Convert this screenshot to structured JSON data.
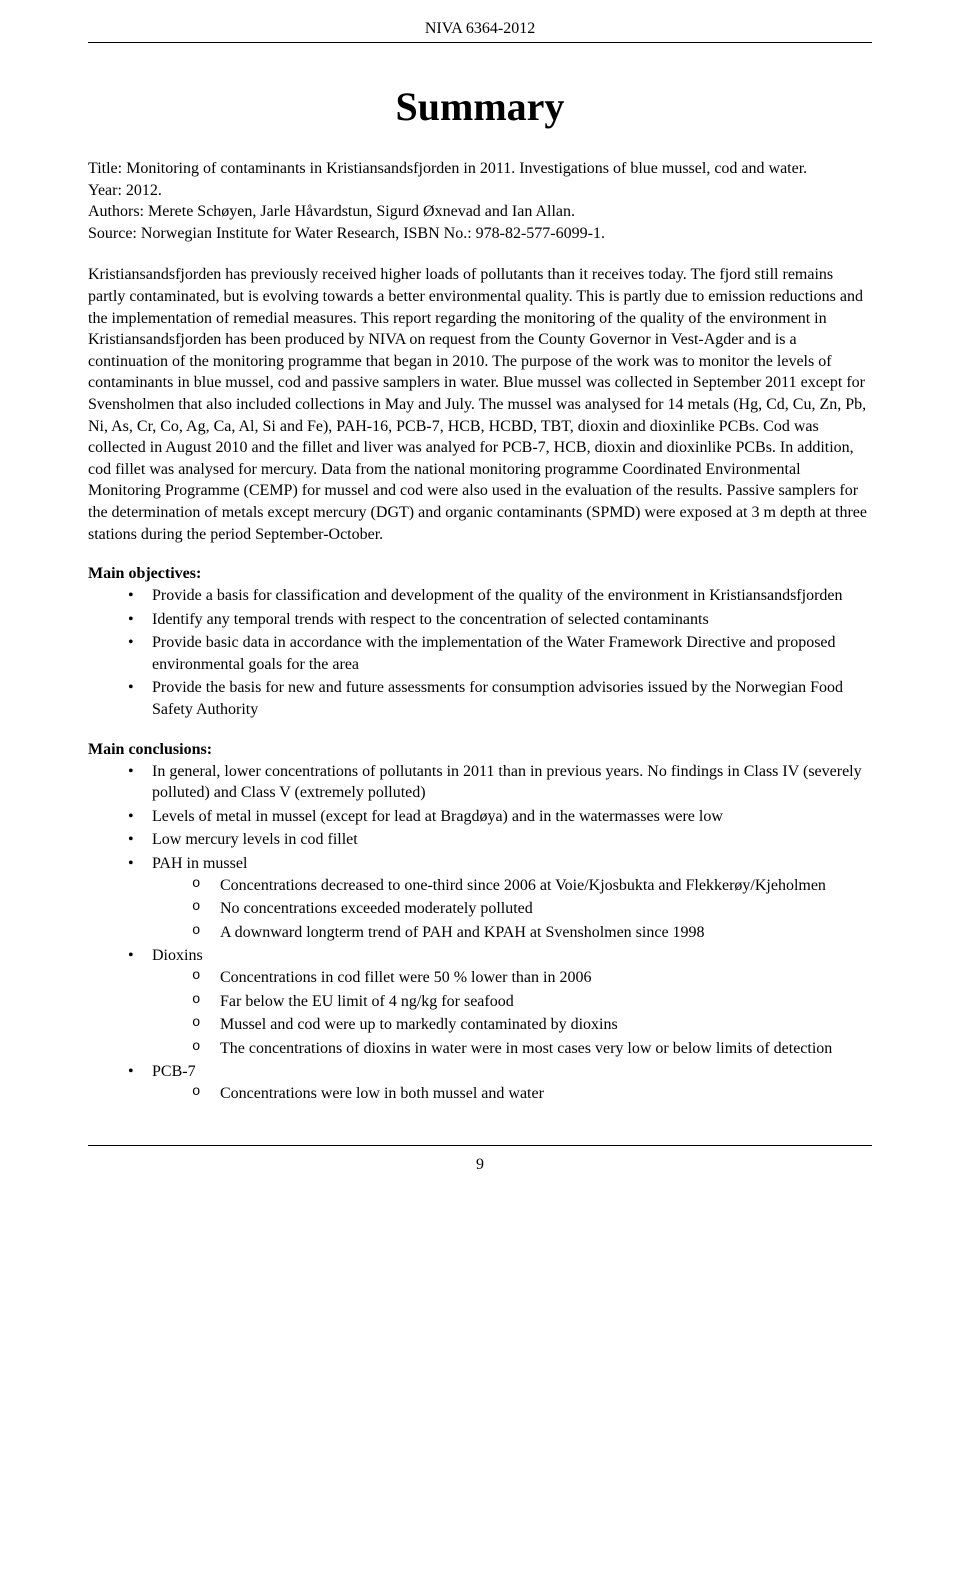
{
  "header": {
    "doc_id": "NIVA 6364-2012"
  },
  "title": "Summary",
  "meta": {
    "title_line": "Title: Monitoring of contaminants in Kristiansandsfjorden in 2011. Investigations of blue mussel, cod and water.",
    "year_line": "Year: 2012.",
    "authors_line": "Authors: Merete Schøyen, Jarle Håvardstun, Sigurd Øxnevad and Ian Allan.",
    "source_line": "Source: Norwegian Institute for Water Research, ISBN No.: 978-82-577-6099-1."
  },
  "body": {
    "para1": "Kristiansandsfjorden has previously received higher loads of pollutants than it receives today. The fjord still remains partly contaminated, but is evolving towards a better environmental quality. This is partly due to emission reductions and the implementation of remedial measures. This report regarding the monitoring of the quality of the environment in Kristiansandsfjorden has been produced by NIVA on request from the County Governor in Vest-Agder and is a continuation of the monitoring programme that began in 2010. The purpose of the work was to monitor the levels of contaminants in blue mussel, cod and passive samplers in water. Blue mussel was collected in September 2011 except for Svensholmen that also included collections in May and July. The mussel was analysed for 14 metals (Hg, Cd, Cu, Zn, Pb, Ni, As, Cr, Co, Ag, Ca, Al, Si and Fe), PAH-16, PCB-7, HCB, HCBD, TBT, dioxin and dioxinlike PCBs. Cod was collected in August 2010 and the fillet and liver was analyed for PCB-7, HCB, dioxin and dioxinlike PCBs. In addition, cod fillet was analysed for mercury. Data from the national monitoring programme Coordinated Environmental Monitoring Programme (CEMP) for mussel and cod were also used in the evaluation of the results. Passive samplers for the determination of metals except mercury (DGT) and organic contaminants (SPMD) were exposed at 3 m depth at three stations during the period September-October."
  },
  "objectives": {
    "heading": "Main objectives:",
    "items": [
      "Provide a basis for classification and development of the quality of the environment in Kristiansandsfjorden",
      "Identify any temporal trends with respect to the concentration of selected contaminants",
      "Provide basic data in accordance with the implementation of the Water Framework Directive and proposed environmental goals for the area",
      "Provide the basis for new and future assessments for consumption advisories issued by the Norwegian Food Safety Authority"
    ]
  },
  "conclusions": {
    "heading": "Main conclusions:",
    "items": [
      {
        "text": "In general, lower concentrations of pollutants in 2011 than in previous years. No findings in Class IV (severely polluted) and Class V (extremely polluted)"
      },
      {
        "text": "Levels of metal in mussel (except for lead at Bragdøya) and in the watermasses were low"
      },
      {
        "text": "Low mercury levels in cod fillet"
      },
      {
        "text": "PAH in mussel",
        "sub": [
          "Concentrations decreased to one-third since 2006 at Voie/Kjosbukta and Flekkerøy/Kjeholmen",
          "No concentrations exceeded moderately polluted",
          "A downward longterm trend of PAH and KPAH at Svensholmen since 1998"
        ]
      },
      {
        "text": "Dioxins",
        "sub": [
          "Concentrations in cod fillet were 50 % lower than in 2006",
          "Far below the EU limit of 4 ng/kg for seafood",
          "Mussel and cod were up to markedly contaminated by dioxins",
          "The concentrations of dioxins in water were in most cases very low or below limits of detection"
        ]
      },
      {
        "text": "PCB-7",
        "sub": [
          "Concentrations were low in both mussel and water"
        ]
      }
    ]
  },
  "footer": {
    "page_number": "9"
  },
  "style": {
    "font_family": "Times New Roman",
    "body_fontsize_pt": 12,
    "title_fontsize_pt": 30,
    "text_color": "#000000",
    "background_color": "#ffffff",
    "rule_color": "#000000"
  }
}
